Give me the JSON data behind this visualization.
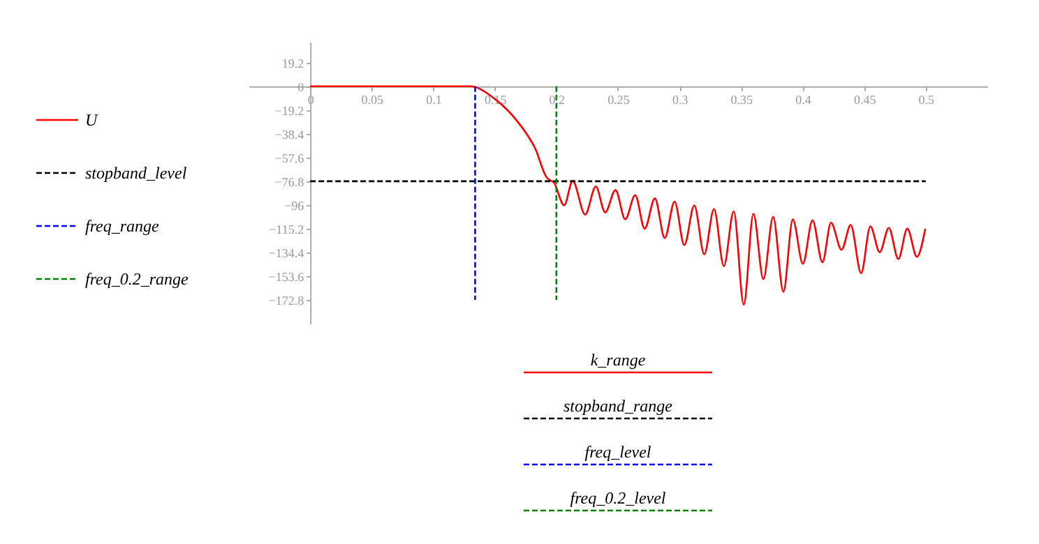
{
  "chart_data": {
    "type": "line",
    "xlim": [
      -0.05,
      0.55
    ],
    "ylim": [
      -192,
      36
    ],
    "xticks": [
      0,
      0.05,
      0.1,
      0.15,
      0.2,
      0.25,
      0.3,
      0.35,
      0.4,
      0.45,
      0.5
    ],
    "yticks": [
      19.2,
      0,
      -19.2,
      -38.4,
      -57.6,
      -76.8,
      -96,
      -115.2,
      -134.4,
      -153.6,
      -172.8
    ],
    "grid": false,
    "legend": "left",
    "marker": "none",
    "annotations": [
      "k_range",
      "stopband_range",
      "freq_level",
      "freq_0.2_level"
    ],
    "series": [
      {
        "name": "U",
        "color": "#ff0000",
        "line_style": "solid",
        "x": [
          0,
          0.05,
          0.1,
          0.13,
          0.15,
          0.168,
          0.183,
          0.192,
          0.194,
          0.198,
          0.2063,
          0.2132,
          0.2234,
          0.232,
          0.2396,
          0.248,
          0.2559,
          0.264,
          0.2717,
          0.28,
          0.288,
          0.296,
          0.3039,
          0.312,
          0.3201,
          0.328,
          0.336,
          0.344,
          0.3522,
          0.36,
          0.3681,
          0.376,
          0.3844,
          0.392,
          0.4002,
          0.408,
          0.4161,
          0.423,
          0.4316,
          0.439,
          0.4475,
          0.455,
          0.4626,
          0.47,
          0.4777,
          0.485,
          0.4928,
          0.4996
        ],
        "values": [
          0,
          0,
          0,
          0,
          -10.2,
          -28,
          -50.8,
          -73.5,
          -75.4,
          -78,
          -96.3,
          -76.5,
          -103.8,
          -81,
          -102,
          -84,
          -107.6,
          -88,
          -115.2,
          -90.6,
          -122.8,
          -93.2,
          -128.5,
          -96.3,
          -136,
          -99.3,
          -145.5,
          -101.2,
          -176.6,
          -103.1,
          -156,
          -105.7,
          -166.3,
          -107.6,
          -143.6,
          -108.3,
          -142.5,
          -110.3,
          -132.3,
          -112.2,
          -151.2,
          -113.3,
          -134.2,
          -114.5,
          -139.8,
          -115.2,
          -137.9,
          -115.2
        ]
      },
      {
        "name": "stopband_level",
        "color": "#000000",
        "line_style": "dashed",
        "x": [
          0,
          0.5
        ],
        "values": [
          -76.8,
          -76.8
        ]
      },
      {
        "name": "freq_range",
        "color": "#0000ff",
        "line_style": "dashed",
        "x": [
          0.134,
          0.134
        ],
        "values": [
          0,
          -172.8
        ]
      },
      {
        "name": "freq_0.2_range",
        "color": "#008000",
        "line_style": "dashed",
        "x": [
          0.2,
          0.2
        ],
        "values": [
          0,
          -172.8
        ]
      }
    ]
  }
}
